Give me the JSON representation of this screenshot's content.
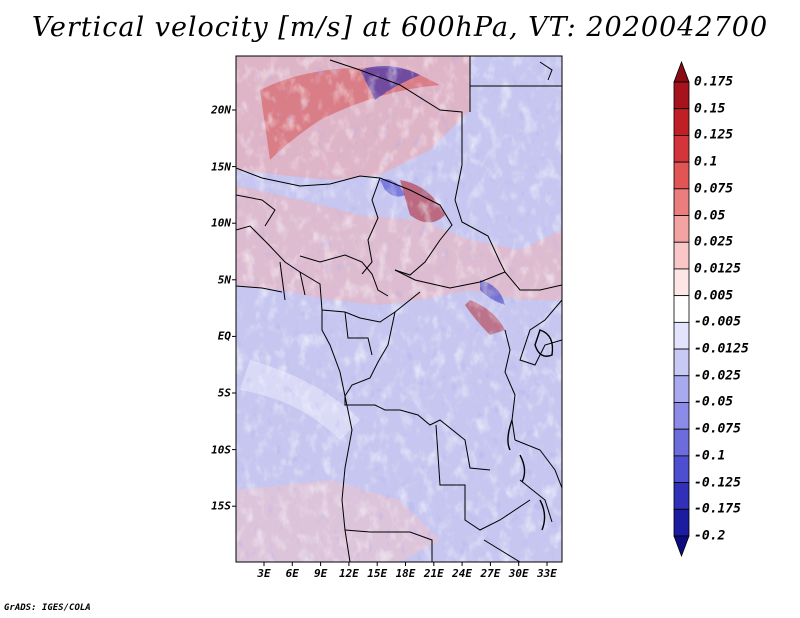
{
  "title": "Vertical velocity [m/s] at 600hPa, VT: 2020042700",
  "footer": "GrADS: IGES/COLA",
  "map": {
    "variable": "Vertical velocity",
    "units": "m/s",
    "level": "600hPa",
    "valid_time": "2020042700",
    "lat_labels": [
      "20N",
      "15N",
      "10N",
      "5N",
      "EQ",
      "5S",
      "10S",
      "15S"
    ],
    "lon_labels": [
      "3E",
      "6E",
      "9E",
      "12E",
      "15E",
      "18E",
      "21E",
      "24E",
      "27E",
      "30E",
      "33E"
    ]
  },
  "colorbar": {
    "labels": [
      "0.175",
      "0.15",
      "0.125",
      "0.1",
      "0.075",
      "0.05",
      "0.025",
      "0.0125",
      "0.005",
      "-0.005",
      "-0.0125",
      "-0.025",
      "-0.05",
      "-0.075",
      "-0.1",
      "-0.125",
      "-0.175",
      "-0.2"
    ],
    "colors": [
      "#8b0a14",
      "#a6131d",
      "#c01f26",
      "#d4353a",
      "#e25555",
      "#ec7d7d",
      "#f4a3a3",
      "#f9c7c7",
      "#fde6e6",
      "#ffffff",
      "#e3e3fb",
      "#c9c9f6",
      "#a9a9f0",
      "#8c8ce8",
      "#6c6cdd",
      "#4e4ed0",
      "#3030b8",
      "#1c1ca0",
      "#0c0c80"
    ]
  }
}
